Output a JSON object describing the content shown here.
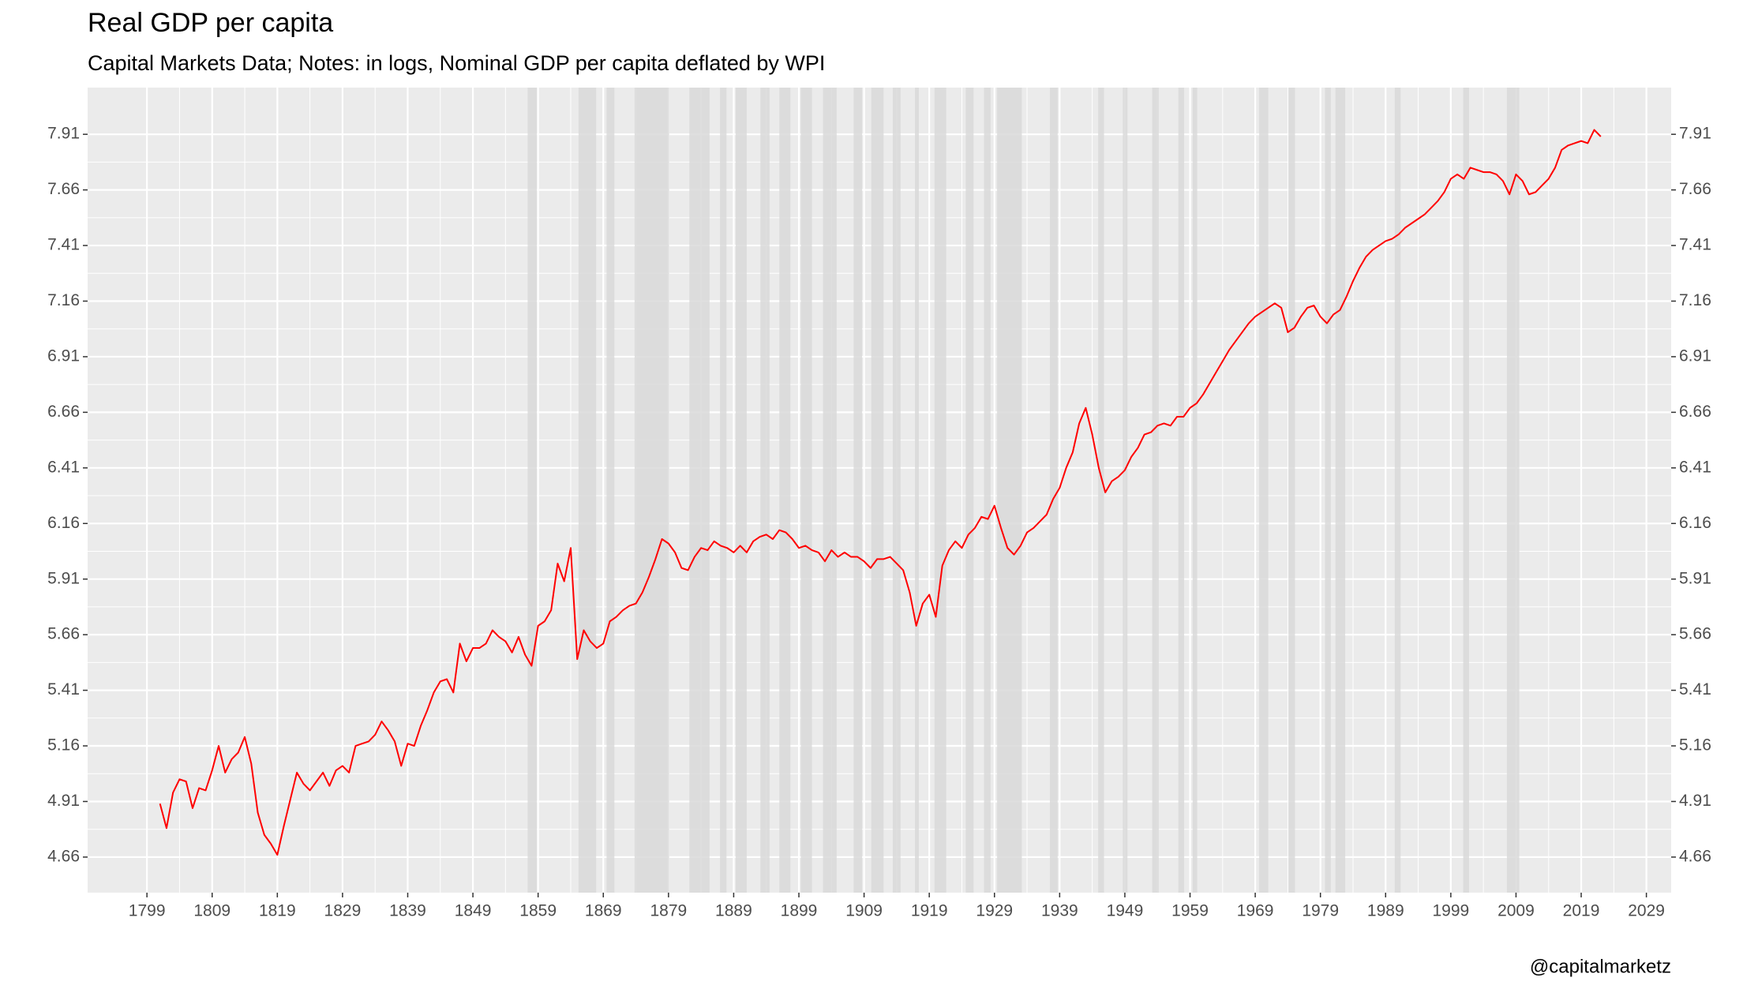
{
  "chart_data": {
    "type": "line",
    "title": "Real GDP per capita",
    "subtitle": "Capital Markets Data; Notes: in logs, Nominal GDP per capita deflated by WPI",
    "caption": "@capitalmarketz",
    "color": "#ff0000",
    "shade_color": "#d9d9d9",
    "grid": true,
    "xlim": [
      1789.9,
      2032.8
    ],
    "ylim": [
      4.5,
      8.12
    ],
    "xticks": [
      1799,
      1809,
      1819,
      1829,
      1839,
      1849,
      1859,
      1869,
      1879,
      1889,
      1899,
      1909,
      1919,
      1929,
      1939,
      1949,
      1959,
      1969,
      1979,
      1989,
      1999,
      2009,
      2019,
      2029
    ],
    "yticks": [
      4.66,
      4.91,
      5.16,
      5.41,
      5.66,
      5.91,
      6.16,
      6.41,
      6.66,
      6.91,
      7.16,
      7.41,
      7.66,
      7.91
    ],
    "shaded_periods": [
      [
        1857.4,
        1858.8
      ],
      [
        1865.2,
        1867.9
      ],
      [
        1869.5,
        1870.7
      ],
      [
        1873.8,
        1879.1
      ],
      [
        1882.2,
        1885.3
      ],
      [
        1886.9,
        1887.9
      ],
      [
        1889.3,
        1891.0
      ],
      [
        1893.1,
        1894.5
      ],
      [
        1896.0,
        1897.7
      ],
      [
        1899.3,
        1901.0
      ],
      [
        1902.7,
        1904.8
      ],
      [
        1907.4,
        1908.7
      ],
      [
        1910.1,
        1912.0
      ],
      [
        1913.4,
        1914.6
      ],
      [
        1916.8,
        1917.4
      ],
      [
        1919.8,
        1921.6
      ],
      [
        1924.6,
        1925.8
      ],
      [
        1927.4,
        1928.4
      ],
      [
        1929.4,
        1933.2
      ],
      [
        1937.5,
        1938.7
      ],
      [
        1944.9,
        1945.8
      ],
      [
        1948.7,
        1949.4
      ],
      [
        1953.2,
        1954.2
      ],
      [
        1957.2,
        1958.1
      ],
      [
        1959.4,
        1960.1
      ],
      [
        1969.6,
        1971.0
      ],
      [
        1974.1,
        1975.1
      ],
      [
        1979.7,
        1980.6
      ],
      [
        1981.3,
        1982.8
      ],
      [
        1990.4,
        1991.3
      ],
      [
        2000.9,
        2001.8
      ],
      [
        2007.6,
        2009.5
      ]
    ],
    "x": [
      1801,
      1802,
      1803,
      1804,
      1805,
      1806,
      1807,
      1808,
      1809,
      1810,
      1811,
      1812,
      1813,
      1814,
      1815,
      1816,
      1817,
      1818,
      1819,
      1820,
      1821,
      1822,
      1823,
      1824,
      1825,
      1826,
      1827,
      1828,
      1829,
      1830,
      1831,
      1832,
      1833,
      1834,
      1835,
      1836,
      1837,
      1838,
      1839,
      1840,
      1841,
      1842,
      1843,
      1844,
      1845,
      1846,
      1847,
      1848,
      1849,
      1850,
      1851,
      1852,
      1853,
      1854,
      1855,
      1856,
      1857,
      1858,
      1859,
      1860,
      1861,
      1862,
      1863,
      1864,
      1865,
      1866,
      1867,
      1868,
      1869,
      1870,
      1871,
      1872,
      1873,
      1874,
      1875,
      1876,
      1877,
      1878,
      1879,
      1880,
      1881,
      1882,
      1883,
      1884,
      1885,
      1886,
      1887,
      1888,
      1889,
      1890,
      1891,
      1892,
      1893,
      1894,
      1895,
      1896,
      1897,
      1898,
      1899,
      1900,
      1901,
      1902,
      1903,
      1904,
      1905,
      1906,
      1907,
      1908,
      1909,
      1910,
      1911,
      1912,
      1913,
      1914,
      1915,
      1916,
      1917,
      1918,
      1919,
      1920,
      1921,
      1922,
      1923,
      1924,
      1925,
      1926,
      1927,
      1928,
      1929,
      1930,
      1931,
      1932,
      1933,
      1934,
      1935,
      1936,
      1937,
      1938,
      1939,
      1940,
      1941,
      1942,
      1943,
      1944,
      1945,
      1946,
      1947,
      1948,
      1949,
      1950,
      1951,
      1952,
      1953,
      1954,
      1955,
      1956,
      1957,
      1958,
      1959,
      1960,
      1961,
      1962,
      1963,
      1964,
      1965,
      1966,
      1967,
      1968,
      1969,
      1970,
      1971,
      1972,
      1973,
      1974,
      1975,
      1976,
      1977,
      1978,
      1979,
      1980,
      1981,
      1982,
      1983,
      1984,
      1985,
      1986,
      1987,
      1988,
      1989,
      1990,
      1991,
      1992,
      1993,
      1994,
      1995,
      1996,
      1997,
      1998,
      1999,
      2000,
      2001,
      2002,
      2003,
      2004,
      2005,
      2006,
      2007,
      2008,
      2009,
      2010,
      2011,
      2012,
      2013,
      2014,
      2015,
      2016,
      2017,
      2018,
      2019,
      2020,
      2021,
      2022
    ],
    "values": [
      4.9,
      4.79,
      4.95,
      5.01,
      5.0,
      4.88,
      4.97,
      4.96,
      5.05,
      5.16,
      5.04,
      5.1,
      5.13,
      5.2,
      5.08,
      4.86,
      4.76,
      4.72,
      4.67,
      4.8,
      4.92,
      5.04,
      4.99,
      4.96,
      5.0,
      5.04,
      4.98,
      5.05,
      5.07,
      5.04,
      5.16,
      5.17,
      5.18,
      5.21,
      5.27,
      5.23,
      5.18,
      5.07,
      5.17,
      5.16,
      5.25,
      5.32,
      5.4,
      5.45,
      5.46,
      5.4,
      5.62,
      5.54,
      5.6,
      5.6,
      5.62,
      5.68,
      5.65,
      5.63,
      5.58,
      5.65,
      5.57,
      5.52,
      5.7,
      5.72,
      5.77,
      5.98,
      5.9,
      6.05,
      5.55,
      5.68,
      5.63,
      5.6,
      5.62,
      5.72,
      5.74,
      5.77,
      5.79,
      5.8,
      5.85,
      5.92,
      6.0,
      6.09,
      6.07,
      6.03,
      5.96,
      5.95,
      6.01,
      6.05,
      6.04,
      6.08,
      6.06,
      6.05,
      6.03,
      6.06,
      6.03,
      6.08,
      6.1,
      6.11,
      6.09,
      6.13,
      6.12,
      6.09,
      6.05,
      6.06,
      6.04,
      6.03,
      5.99,
      6.04,
      6.01,
      6.03,
      6.01,
      6.01,
      5.99,
      5.96,
      6.0,
      6.0,
      6.01,
      5.98,
      5.95,
      5.85,
      5.7,
      5.8,
      5.84,
      5.74,
      5.97,
      6.04,
      6.08,
      6.05,
      6.11,
      6.14,
      6.19,
      6.18,
      6.24,
      6.14,
      6.05,
      6.02,
      6.06,
      6.12,
      6.14,
      6.17,
      6.2,
      6.27,
      6.32,
      6.41,
      6.48,
      6.61,
      6.68,
      6.56,
      6.41,
      6.3,
      6.35,
      6.37,
      6.4,
      6.46,
      6.5,
      6.56,
      6.57,
      6.6,
      6.61,
      6.6,
      6.64,
      6.64,
      6.68,
      6.7,
      6.74,
      6.79,
      6.84,
      6.89,
      6.94,
      6.98,
      7.02,
      7.06,
      7.09,
      7.11,
      7.13,
      7.15,
      7.13,
      7.02,
      7.04,
      7.09,
      7.13,
      7.14,
      7.09,
      7.06,
      7.1,
      7.12,
      7.18,
      7.25,
      7.31,
      7.36,
      7.39,
      7.41,
      7.43,
      7.44,
      7.46,
      7.49,
      7.51,
      7.53,
      7.55,
      7.58,
      7.61,
      7.65,
      7.71,
      7.73,
      7.71,
      7.76,
      7.75,
      7.74,
      7.74,
      7.73,
      7.7,
      7.64,
      7.73,
      7.7,
      7.64,
      7.65,
      7.68,
      7.71,
      7.76,
      7.84,
      7.86,
      7.87,
      7.88,
      7.87,
      7.93,
      7.9
    ]
  }
}
